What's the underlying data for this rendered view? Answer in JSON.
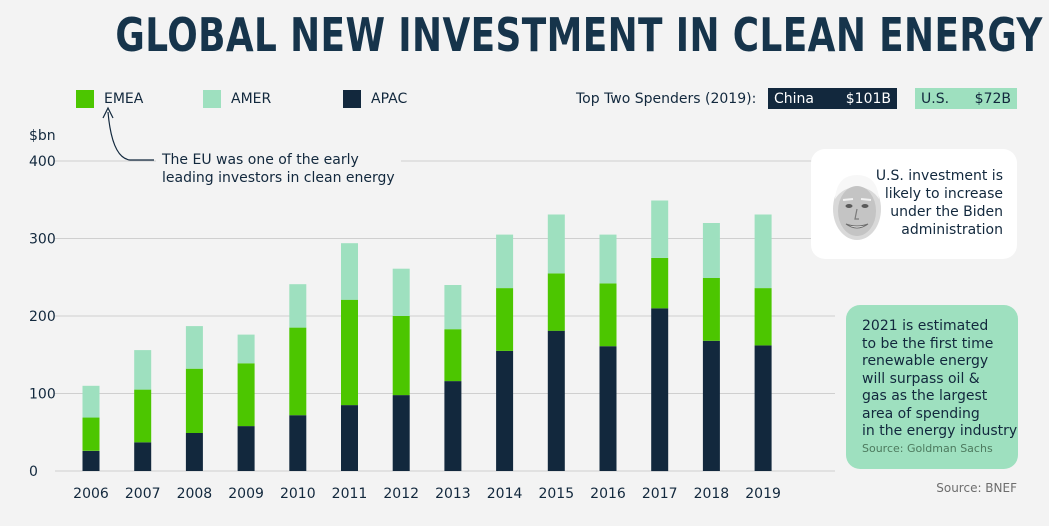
{
  "title": "GLOBAL NEW INVESTMENT IN CLEAN ENERGY",
  "legend": [
    {
      "label": "EMEA",
      "color": "#4cc600"
    },
    {
      "label": "AMER",
      "color": "#9ee0bf"
    },
    {
      "label": "APAC",
      "color": "#12283d"
    }
  ],
  "top_spenders": {
    "label": "Top Two Spenders (2019):",
    "items": [
      {
        "country": "China",
        "amount": "$101B"
      },
      {
        "country": "U.S.",
        "amount": "$72B"
      }
    ]
  },
  "annotations": {
    "eu_note": "The EU was one of the early\nleading investors in clean energy",
    "biden_note": "U.S. investment is likely to increase under the Biden administration",
    "forecast_note": "2021 is estimated\nto be the first time\nrenewable energy\nwill surpass oil &\ngas as the largest\narea of spending\nin the energy industry",
    "forecast_source": "Source: Goldman Sachs"
  },
  "source": "Source: BNEF",
  "colors": {
    "EMEA": "#4cc600",
    "AMER": "#9ee0bf",
    "APAC": "#12283d",
    "grid": "#cfcfcf",
    "axis_text": "#12283d"
  },
  "chart_data": {
    "type": "bar",
    "stacked": true,
    "title": "GLOBAL NEW INVESTMENT IN CLEAN ENERGY",
    "xlabel": "",
    "ylabel": "$bn",
    "categories": [
      "2006",
      "2007",
      "2008",
      "2009",
      "2010",
      "2011",
      "2012",
      "2013",
      "2014",
      "2015",
      "2016",
      "2017",
      "2018",
      "2019"
    ],
    "series": [
      {
        "name": "APAC",
        "values": [
          26,
          37,
          49,
          58,
          72,
          85,
          98,
          116,
          155,
          181,
          161,
          210,
          168,
          162
        ]
      },
      {
        "name": "EMEA",
        "values": [
          43,
          68,
          83,
          81,
          113,
          136,
          102,
          67,
          81,
          74,
          81,
          65,
          81,
          74
        ]
      },
      {
        "name": "AMER",
        "values": [
          41,
          51,
          55,
          37,
          56,
          73,
          61,
          57,
          69,
          76,
          63,
          74,
          71,
          95
        ]
      }
    ],
    "ylim": [
      0,
      400
    ],
    "yticks": [
      0,
      100,
      200,
      300,
      400
    ],
    "grid": true,
    "legend_position": "top-left"
  }
}
